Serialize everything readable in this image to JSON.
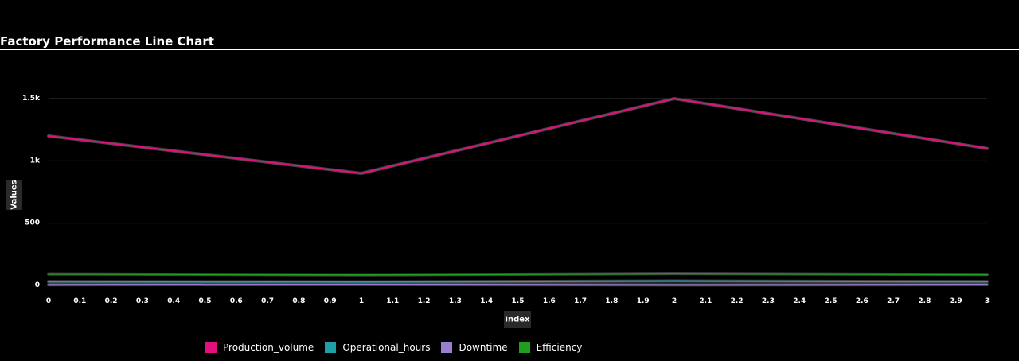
{
  "chart_data": {
    "type": "line",
    "title": "Factory Performance Line Chart",
    "xlabel": "index",
    "ylabel": "Values",
    "x": [
      0,
      1,
      2,
      3
    ],
    "xlim": [
      0,
      3
    ],
    "ylim": [
      0,
      1500
    ],
    "x_ticks": [
      "0",
      "0.1",
      "0.2",
      "0.3",
      "0.4",
      "0.5",
      "0.6",
      "0.7",
      "0.8",
      "0.9",
      "1",
      "1.1",
      "1.2",
      "1.3",
      "1.4",
      "1.5",
      "1.6",
      "1.7",
      "1.8",
      "1.9",
      "2",
      "2.1",
      "2.2",
      "2.3",
      "2.4",
      "2.5",
      "2.6",
      "2.7",
      "2.8",
      "2.9",
      "3"
    ],
    "y_ticks": [
      "0",
      "500",
      "1k",
      "1.5k"
    ],
    "grid": true,
    "legend_position": "bottom-left",
    "series": [
      {
        "name": "Production_volume",
        "color": "#e0107f",
        "values": [
          1200,
          900,
          1500,
          1100
        ]
      },
      {
        "name": "Operational_hours",
        "color": "#1f9fa8",
        "values": [
          30,
          28,
          35,
          30
        ]
      },
      {
        "name": "Downtime",
        "color": "#9a7fd1",
        "values": [
          5,
          7,
          4,
          6
        ]
      },
      {
        "name": "Efficiency",
        "color": "#1f9e1f",
        "values": [
          92,
          85,
          95,
          88
        ]
      }
    ]
  }
}
